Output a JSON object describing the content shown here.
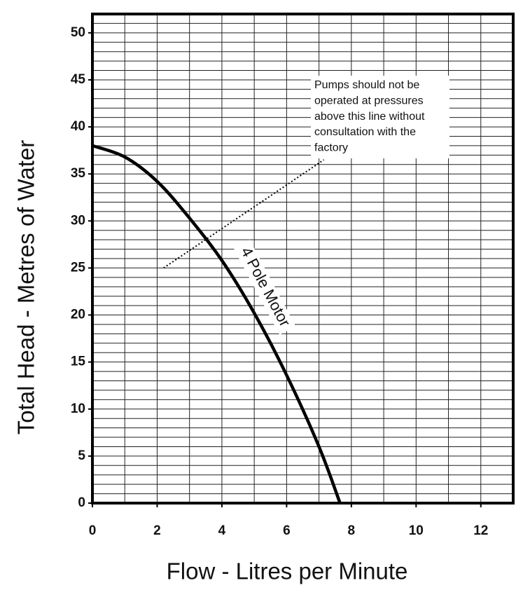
{
  "chart_data": {
    "type": "line",
    "x_label": "Flow - Litres per Minute",
    "y_label": "Total Head - Metres of Water",
    "x": [
      0,
      1,
      2,
      3,
      4,
      5,
      6,
      7,
      7.65
    ],
    "series": [
      {
        "name": "4 Pole Motor",
        "color": "#000000",
        "values": [
          38,
          36.8,
          34.2,
          30.3,
          25.8,
          20.2,
          13.6,
          6,
          0
        ]
      }
    ],
    "xlim": [
      0,
      13
    ],
    "ylim": [
      0,
      52
    ],
    "xticks": [
      0,
      2,
      4,
      6,
      8,
      10,
      12
    ],
    "yticks": [
      0,
      5,
      10,
      15,
      20,
      25,
      30,
      35,
      40,
      45,
      50
    ],
    "grid": true,
    "minor_grid": {
      "x": 1,
      "y": 1
    },
    "annotation": {
      "lines": [
        "Pumps should not be",
        "operated at pressures",
        "above this line without",
        "consultation with the",
        "factory"
      ],
      "line_x": [
        2.2,
        7.15
      ],
      "line_y": [
        25,
        36.5
      ]
    }
  }
}
